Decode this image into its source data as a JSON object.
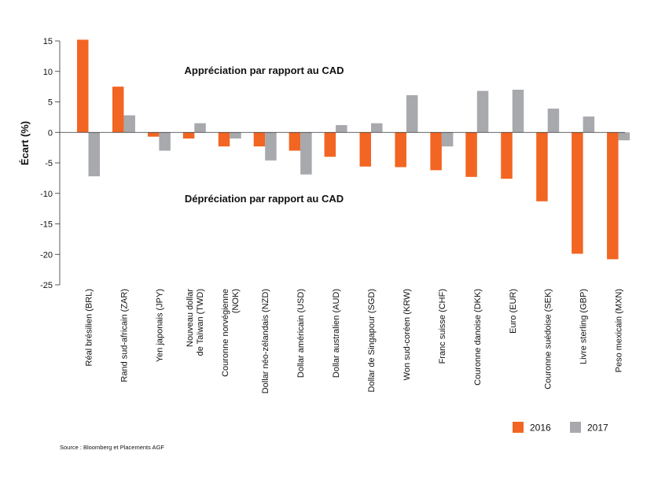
{
  "chart_data": {
    "type": "bar",
    "title": "",
    "xlabel": "",
    "ylabel": "Écart (%)",
    "ylim": [
      -25,
      15
    ],
    "yticks": [
      15,
      10,
      5,
      0,
      -5,
      -10,
      -15,
      -20,
      -25
    ],
    "grid": false,
    "legend_position": "bottom-right",
    "categories": [
      [
        "Réal brésilien (BRL)"
      ],
      [
        "Rand sud-africain (ZAR)"
      ],
      [
        "Yen japonais (JPY)"
      ],
      [
        "Nouveau dollar",
        "de Taïwan (TWD)"
      ],
      [
        "Couronne norvégienne",
        "(NOK)"
      ],
      [
        "Dollar néo-zélandais (NZD)"
      ],
      [
        "Dollar américain (USD)"
      ],
      [
        "Dollar australien (AUD)"
      ],
      [
        "Dollar de Singapour (SGD)"
      ],
      [
        "Won sud-coréen (KRW)"
      ],
      [
        "Franc suisse (CHF)"
      ],
      [
        "Couronne danoise (DKK)"
      ],
      [
        "Euro (EUR)"
      ],
      [
        "Couronne suédoise (SEK)"
      ],
      [
        "Livre sterling (GBP)"
      ],
      [
        "Peso mexicain (MXN)"
      ]
    ],
    "series": [
      {
        "name": "2016",
        "color": "#f26522",
        "values": [
          15.2,
          7.5,
          -0.7,
          -1.0,
          -2.3,
          -2.3,
          -3.0,
          -4.0,
          -5.6,
          -5.7,
          -6.2,
          -7.3,
          -7.6,
          -11.3,
          -19.9,
          -20.8
        ]
      },
      {
        "name": "2017",
        "color": "#a7a9ac",
        "values": [
          -7.2,
          2.8,
          -3.0,
          1.5,
          -1.0,
          -4.6,
          -6.9,
          1.2,
          1.5,
          6.1,
          -2.3,
          6.8,
          7.0,
          3.9,
          2.6,
          -1.3
        ]
      }
    ],
    "annotations": [
      "Appréciation par rapport au CAD",
      "Dépréciation par rapport au CAD"
    ]
  },
  "source_note": "Source : Bloomberg et Placements AGF"
}
